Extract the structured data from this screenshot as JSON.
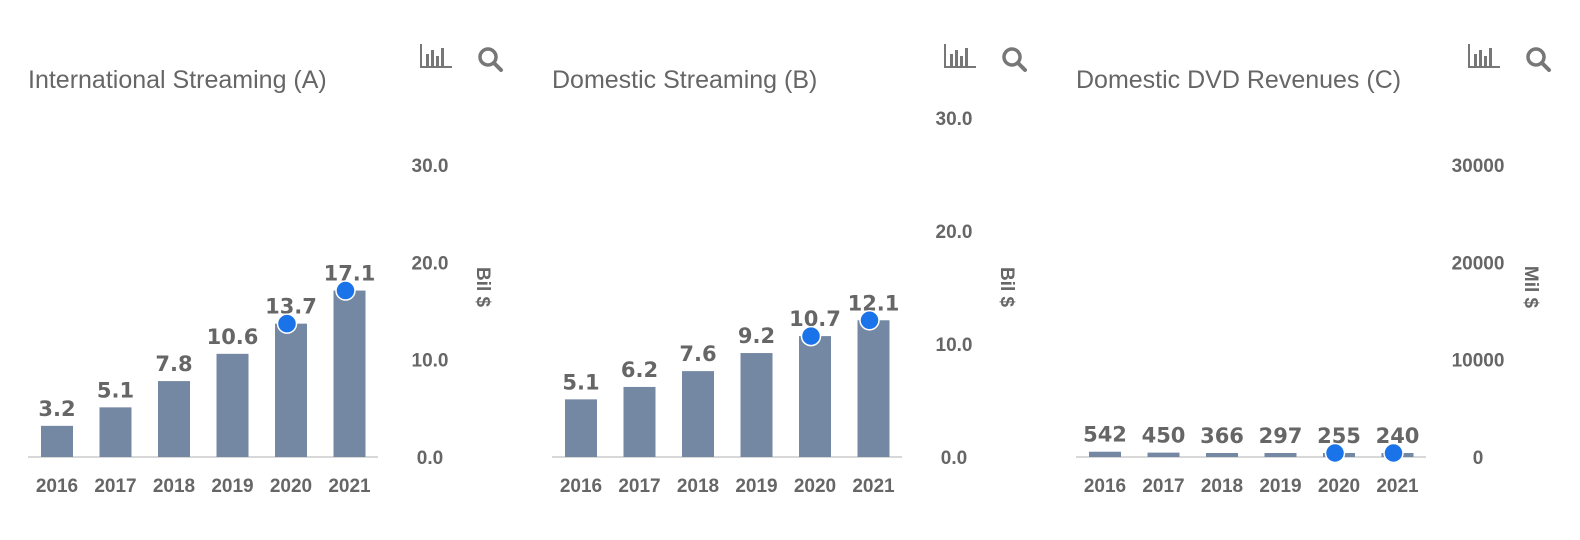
{
  "colors": {
    "bar": "#7588a3",
    "marker": "#1a73e8",
    "axis_text": "#666666",
    "baseline": "#cccccc"
  },
  "icons": [
    "bar-chart-icon",
    "search-icon"
  ],
  "chart_data": [
    {
      "type": "bar",
      "title": "International Streaming (A)",
      "categories": [
        "2016",
        "2017",
        "2018",
        "2019",
        "2020",
        "2021"
      ],
      "values": [
        3.2,
        5.1,
        7.8,
        10.6,
        13.7,
        17.1
      ],
      "value_labels": [
        "3.2",
        "5.1",
        "7.8",
        "10.6",
        "13.7",
        "17.1"
      ],
      "highlighted": [
        "2020",
        "2021"
      ],
      "ylabel": "Bil $",
      "ylim": [
        0,
        30
      ],
      "yticks": [
        0,
        10,
        20,
        30
      ],
      "ytick_labels": [
        "0.0",
        "10.0",
        "20.0",
        "30.0"
      ],
      "y_axis_side": "right"
    },
    {
      "type": "bar",
      "title": "Domestic Streaming (B)",
      "categories": [
        "2016",
        "2017",
        "2018",
        "2019",
        "2020",
        "2021"
      ],
      "values": [
        5.1,
        6.2,
        7.6,
        9.2,
        10.7,
        12.1
      ],
      "value_labels": [
        "5.1",
        "6.2",
        "7.6",
        "9.2",
        "10.7",
        "12.1"
      ],
      "highlighted": [
        "2020",
        "2021"
      ],
      "ylabel": "Bil $",
      "ylim": [
        0,
        30
      ],
      "yticks": [
        0,
        10,
        20,
        30
      ],
      "ytick_labels": [
        "0.0",
        "10.0",
        "20.0",
        "30.0"
      ],
      "y_axis_side": "right"
    },
    {
      "type": "bar",
      "title": "Domestic DVD Revenues (C)",
      "categories": [
        "2016",
        "2017",
        "2018",
        "2019",
        "2020",
        "2021"
      ],
      "values": [
        542,
        450,
        366,
        297,
        255,
        240
      ],
      "value_labels": [
        "542",
        "450",
        "366",
        "297",
        "255",
        "240"
      ],
      "highlighted": [
        "2020",
        "2021"
      ],
      "ylabel": "Mil $",
      "ylim": [
        0,
        30000
      ],
      "yticks": [
        0,
        10000,
        20000,
        30000
      ],
      "ytick_labels": [
        "0",
        "10000",
        "20000",
        "30000"
      ],
      "y_axis_side": "right"
    }
  ]
}
